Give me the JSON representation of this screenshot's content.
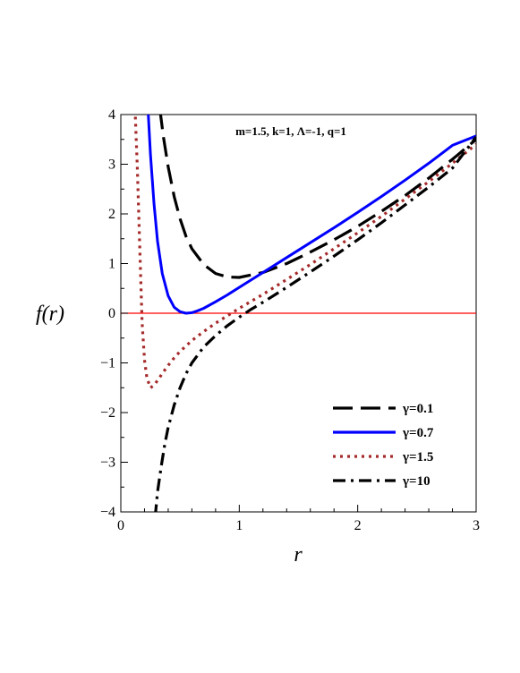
{
  "chart_data": {
    "type": "line",
    "title": "",
    "annotation": "m=1.5, k=1, Λ=-1, q=1",
    "xlabel": "r",
    "ylabel": "f(r)",
    "xlim": [
      0,
      3
    ],
    "ylim": [
      -4,
      4
    ],
    "xticks": [
      "0",
      "1",
      "2",
      "3"
    ],
    "yticks": [
      "−4",
      "−3",
      "−2",
      "−1",
      "0",
      "1",
      "2",
      "3",
      "4"
    ],
    "grid": false,
    "legend_position": "lower-right",
    "reference_line": {
      "y": 0,
      "color": "#ff0000"
    },
    "series": [
      {
        "name": "γ=0.1",
        "color": "#000000",
        "dash": "dash",
        "x": [
          0.33,
          0.36,
          0.4,
          0.45,
          0.5,
          0.55,
          0.6,
          0.7,
          0.8,
          0.9,
          1.0,
          1.2,
          1.4,
          1.6,
          1.8,
          2.0,
          2.2,
          2.4,
          2.6,
          2.8,
          3.0
        ],
        "y": [
          4.1,
          3.55,
          2.95,
          2.35,
          1.9,
          1.55,
          1.3,
          0.98,
          0.8,
          0.73,
          0.72,
          0.82,
          1.0,
          1.23,
          1.48,
          1.75,
          2.05,
          2.37,
          2.72,
          3.1,
          3.5
        ]
      },
      {
        "name": "γ=0.7",
        "color": "#0000ff",
        "dash": "solid",
        "x": [
          0.23,
          0.25,
          0.28,
          0.31,
          0.35,
          0.4,
          0.45,
          0.5,
          0.55,
          0.6,
          0.65,
          0.7,
          0.8,
          0.9,
          1.0,
          1.2,
          1.4,
          1.6,
          1.8,
          2.0,
          2.2,
          2.4,
          2.6,
          2.8,
          3.0
        ],
        "y": [
          4.1,
          3.2,
          2.2,
          1.45,
          0.8,
          0.35,
          0.12,
          0.03,
          0.0,
          0.01,
          0.05,
          0.1,
          0.23,
          0.37,
          0.52,
          0.82,
          1.12,
          1.42,
          1.72,
          2.03,
          2.35,
          2.68,
          3.02,
          3.38,
          3.57
        ]
      },
      {
        "name": "γ=1.5",
        "color": "#a52a2a",
        "dash": "dot",
        "x": [
          0.12,
          0.14,
          0.16,
          0.18,
          0.2,
          0.22,
          0.25,
          0.28,
          0.32,
          0.36,
          0.4,
          0.45,
          0.5,
          0.6,
          0.7,
          0.8,
          0.9,
          1.0,
          1.2,
          1.4,
          1.6,
          1.8,
          2.0,
          2.2,
          2.4,
          2.6,
          2.8,
          3.0
        ],
        "y": [
          4.1,
          2.9,
          1.3,
          -0.2,
          -0.95,
          -1.3,
          -1.5,
          -1.45,
          -1.32,
          -1.18,
          -1.05,
          -0.9,
          -0.77,
          -0.55,
          -0.37,
          -0.2,
          -0.05,
          0.1,
          0.38,
          0.68,
          0.98,
          1.3,
          1.62,
          1.95,
          2.3,
          2.65,
          3.02,
          3.4
        ]
      },
      {
        "name": "γ=10",
        "color": "#000000",
        "dash": "dashdot",
        "x": [
          0.29,
          0.31,
          0.34,
          0.37,
          0.4,
          0.45,
          0.5,
          0.55,
          0.6,
          0.7,
          0.8,
          0.9,
          1.0,
          1.1,
          1.2,
          1.4,
          1.6,
          1.8,
          2.0,
          2.2,
          2.4,
          2.6,
          2.8,
          3.0
        ],
        "y": [
          -4.1,
          -3.6,
          -3.1,
          -2.65,
          -2.3,
          -1.85,
          -1.5,
          -1.22,
          -1.0,
          -0.68,
          -0.45,
          -0.25,
          -0.08,
          0.08,
          0.22,
          0.52,
          0.83,
          1.15,
          1.48,
          1.82,
          2.18,
          2.54,
          2.92,
          3.55
        ]
      }
    ]
  }
}
